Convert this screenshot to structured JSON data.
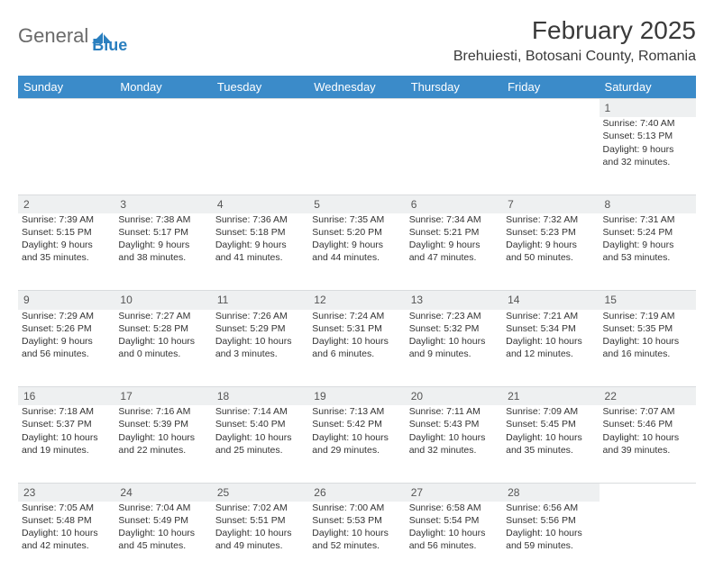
{
  "brand": {
    "name1": "General",
    "name2": "Blue"
  },
  "title": "February 2025",
  "location": "Brehuiesti, Botosani County, Romania",
  "colors": {
    "header_bg": "#3b8bc9",
    "header_text": "#ffffff",
    "daybar_bg": "#eef0f1",
    "text": "#333333",
    "brand_gray": "#6a6a6a",
    "brand_blue": "#2a7fbf"
  },
  "weekdays": [
    "Sunday",
    "Monday",
    "Tuesday",
    "Wednesday",
    "Thursday",
    "Friday",
    "Saturday"
  ],
  "weeks": [
    [
      null,
      null,
      null,
      null,
      null,
      null,
      {
        "d": "1",
        "sr": "Sunrise: 7:40 AM",
        "ss": "Sunset: 5:13 PM",
        "dl1": "Daylight: 9 hours",
        "dl2": "and 32 minutes."
      }
    ],
    [
      {
        "d": "2",
        "sr": "Sunrise: 7:39 AM",
        "ss": "Sunset: 5:15 PM",
        "dl1": "Daylight: 9 hours",
        "dl2": "and 35 minutes."
      },
      {
        "d": "3",
        "sr": "Sunrise: 7:38 AM",
        "ss": "Sunset: 5:17 PM",
        "dl1": "Daylight: 9 hours",
        "dl2": "and 38 minutes."
      },
      {
        "d": "4",
        "sr": "Sunrise: 7:36 AM",
        "ss": "Sunset: 5:18 PM",
        "dl1": "Daylight: 9 hours",
        "dl2": "and 41 minutes."
      },
      {
        "d": "5",
        "sr": "Sunrise: 7:35 AM",
        "ss": "Sunset: 5:20 PM",
        "dl1": "Daylight: 9 hours",
        "dl2": "and 44 minutes."
      },
      {
        "d": "6",
        "sr": "Sunrise: 7:34 AM",
        "ss": "Sunset: 5:21 PM",
        "dl1": "Daylight: 9 hours",
        "dl2": "and 47 minutes."
      },
      {
        "d": "7",
        "sr": "Sunrise: 7:32 AM",
        "ss": "Sunset: 5:23 PM",
        "dl1": "Daylight: 9 hours",
        "dl2": "and 50 minutes."
      },
      {
        "d": "8",
        "sr": "Sunrise: 7:31 AM",
        "ss": "Sunset: 5:24 PM",
        "dl1": "Daylight: 9 hours",
        "dl2": "and 53 minutes."
      }
    ],
    [
      {
        "d": "9",
        "sr": "Sunrise: 7:29 AM",
        "ss": "Sunset: 5:26 PM",
        "dl1": "Daylight: 9 hours",
        "dl2": "and 56 minutes."
      },
      {
        "d": "10",
        "sr": "Sunrise: 7:27 AM",
        "ss": "Sunset: 5:28 PM",
        "dl1": "Daylight: 10 hours",
        "dl2": "and 0 minutes."
      },
      {
        "d": "11",
        "sr": "Sunrise: 7:26 AM",
        "ss": "Sunset: 5:29 PM",
        "dl1": "Daylight: 10 hours",
        "dl2": "and 3 minutes."
      },
      {
        "d": "12",
        "sr": "Sunrise: 7:24 AM",
        "ss": "Sunset: 5:31 PM",
        "dl1": "Daylight: 10 hours",
        "dl2": "and 6 minutes."
      },
      {
        "d": "13",
        "sr": "Sunrise: 7:23 AM",
        "ss": "Sunset: 5:32 PM",
        "dl1": "Daylight: 10 hours",
        "dl2": "and 9 minutes."
      },
      {
        "d": "14",
        "sr": "Sunrise: 7:21 AM",
        "ss": "Sunset: 5:34 PM",
        "dl1": "Daylight: 10 hours",
        "dl2": "and 12 minutes."
      },
      {
        "d": "15",
        "sr": "Sunrise: 7:19 AM",
        "ss": "Sunset: 5:35 PM",
        "dl1": "Daylight: 10 hours",
        "dl2": "and 16 minutes."
      }
    ],
    [
      {
        "d": "16",
        "sr": "Sunrise: 7:18 AM",
        "ss": "Sunset: 5:37 PM",
        "dl1": "Daylight: 10 hours",
        "dl2": "and 19 minutes."
      },
      {
        "d": "17",
        "sr": "Sunrise: 7:16 AM",
        "ss": "Sunset: 5:39 PM",
        "dl1": "Daylight: 10 hours",
        "dl2": "and 22 minutes."
      },
      {
        "d": "18",
        "sr": "Sunrise: 7:14 AM",
        "ss": "Sunset: 5:40 PM",
        "dl1": "Daylight: 10 hours",
        "dl2": "and 25 minutes."
      },
      {
        "d": "19",
        "sr": "Sunrise: 7:13 AM",
        "ss": "Sunset: 5:42 PM",
        "dl1": "Daylight: 10 hours",
        "dl2": "and 29 minutes."
      },
      {
        "d": "20",
        "sr": "Sunrise: 7:11 AM",
        "ss": "Sunset: 5:43 PM",
        "dl1": "Daylight: 10 hours",
        "dl2": "and 32 minutes."
      },
      {
        "d": "21",
        "sr": "Sunrise: 7:09 AM",
        "ss": "Sunset: 5:45 PM",
        "dl1": "Daylight: 10 hours",
        "dl2": "and 35 minutes."
      },
      {
        "d": "22",
        "sr": "Sunrise: 7:07 AM",
        "ss": "Sunset: 5:46 PM",
        "dl1": "Daylight: 10 hours",
        "dl2": "and 39 minutes."
      }
    ],
    [
      {
        "d": "23",
        "sr": "Sunrise: 7:05 AM",
        "ss": "Sunset: 5:48 PM",
        "dl1": "Daylight: 10 hours",
        "dl2": "and 42 minutes."
      },
      {
        "d": "24",
        "sr": "Sunrise: 7:04 AM",
        "ss": "Sunset: 5:49 PM",
        "dl1": "Daylight: 10 hours",
        "dl2": "and 45 minutes."
      },
      {
        "d": "25",
        "sr": "Sunrise: 7:02 AM",
        "ss": "Sunset: 5:51 PM",
        "dl1": "Daylight: 10 hours",
        "dl2": "and 49 minutes."
      },
      {
        "d": "26",
        "sr": "Sunrise: 7:00 AM",
        "ss": "Sunset: 5:53 PM",
        "dl1": "Daylight: 10 hours",
        "dl2": "and 52 minutes."
      },
      {
        "d": "27",
        "sr": "Sunrise: 6:58 AM",
        "ss": "Sunset: 5:54 PM",
        "dl1": "Daylight: 10 hours",
        "dl2": "and 56 minutes."
      },
      {
        "d": "28",
        "sr": "Sunrise: 6:56 AM",
        "ss": "Sunset: 5:56 PM",
        "dl1": "Daylight: 10 hours",
        "dl2": "and 59 minutes."
      },
      null
    ]
  ]
}
